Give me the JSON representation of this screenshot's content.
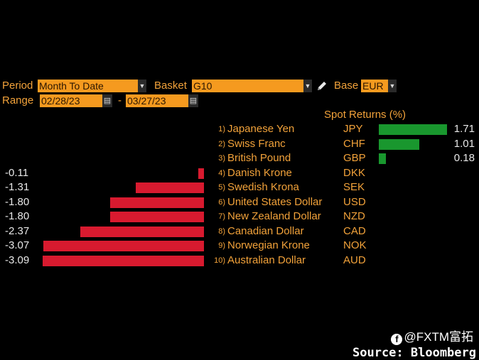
{
  "controls": {
    "period_label": "Period",
    "period_value": "Month To Date",
    "basket_label": "Basket",
    "basket_value": "G10",
    "base_label": "Base",
    "base_value": "EUR",
    "range_label": "Range",
    "range_start": "02/28/23",
    "range_separator": "-",
    "range_end": "03/27/23"
  },
  "header": {
    "spot_returns": "Spot Returns (%)"
  },
  "rows": [
    {
      "rank": "1)",
      "name": "Japanese Yen",
      "code": "JPY",
      "value": 1.71,
      "value_text": "1.71"
    },
    {
      "rank": "2)",
      "name": "Swiss Franc",
      "code": "CHF",
      "value": 1.01,
      "value_text": "1.01"
    },
    {
      "rank": "3)",
      "name": "British Pound",
      "code": "GBP",
      "value": 0.18,
      "value_text": "0.18"
    },
    {
      "rank": "4)",
      "name": "Danish Krone",
      "code": "DKK",
      "value": -0.11,
      "value_text": "-0.11"
    },
    {
      "rank": "5)",
      "name": "Swedish Krona",
      "code": "SEK",
      "value": -1.31,
      "value_text": "-1.31"
    },
    {
      "rank": "6)",
      "name": "United States Dollar",
      "code": "USD",
      "value": -1.8,
      "value_text": "-1.80"
    },
    {
      "rank": "7)",
      "name": "New Zealand Dollar",
      "code": "NZD",
      "value": -1.8,
      "value_text": "-1.80"
    },
    {
      "rank": "8)",
      "name": "Canadian Dollar",
      "code": "CAD",
      "value": -2.37,
      "value_text": "-2.37"
    },
    {
      "rank": "9)",
      "name": "Norwegian Krone",
      "code": "NOK",
      "value": -3.07,
      "value_text": "-3.07"
    },
    {
      "rank": "10)",
      "name": "Australian Dollar",
      "code": "AUD",
      "value": -3.09,
      "value_text": "-3.09"
    }
  ],
  "chart_data": {
    "type": "bar",
    "title": "Spot Returns (%)",
    "categories": [
      "JPY",
      "CHF",
      "GBP",
      "DKK",
      "SEK",
      "USD",
      "NZD",
      "CAD",
      "NOK",
      "AUD"
    ],
    "values": [
      1.71,
      1.01,
      0.18,
      -0.11,
      -1.31,
      -1.8,
      -1.8,
      -2.37,
      -3.07,
      -3.09
    ],
    "colors": {
      "positive": "#19972e",
      "negative": "#d81a2f"
    }
  },
  "footer": {
    "brand": "@FXTM富拓",
    "source": "Source: Bloomberg"
  },
  "colors": {
    "accent": "#f59a1f",
    "label": "#f2a23a",
    "background": "#000000"
  }
}
